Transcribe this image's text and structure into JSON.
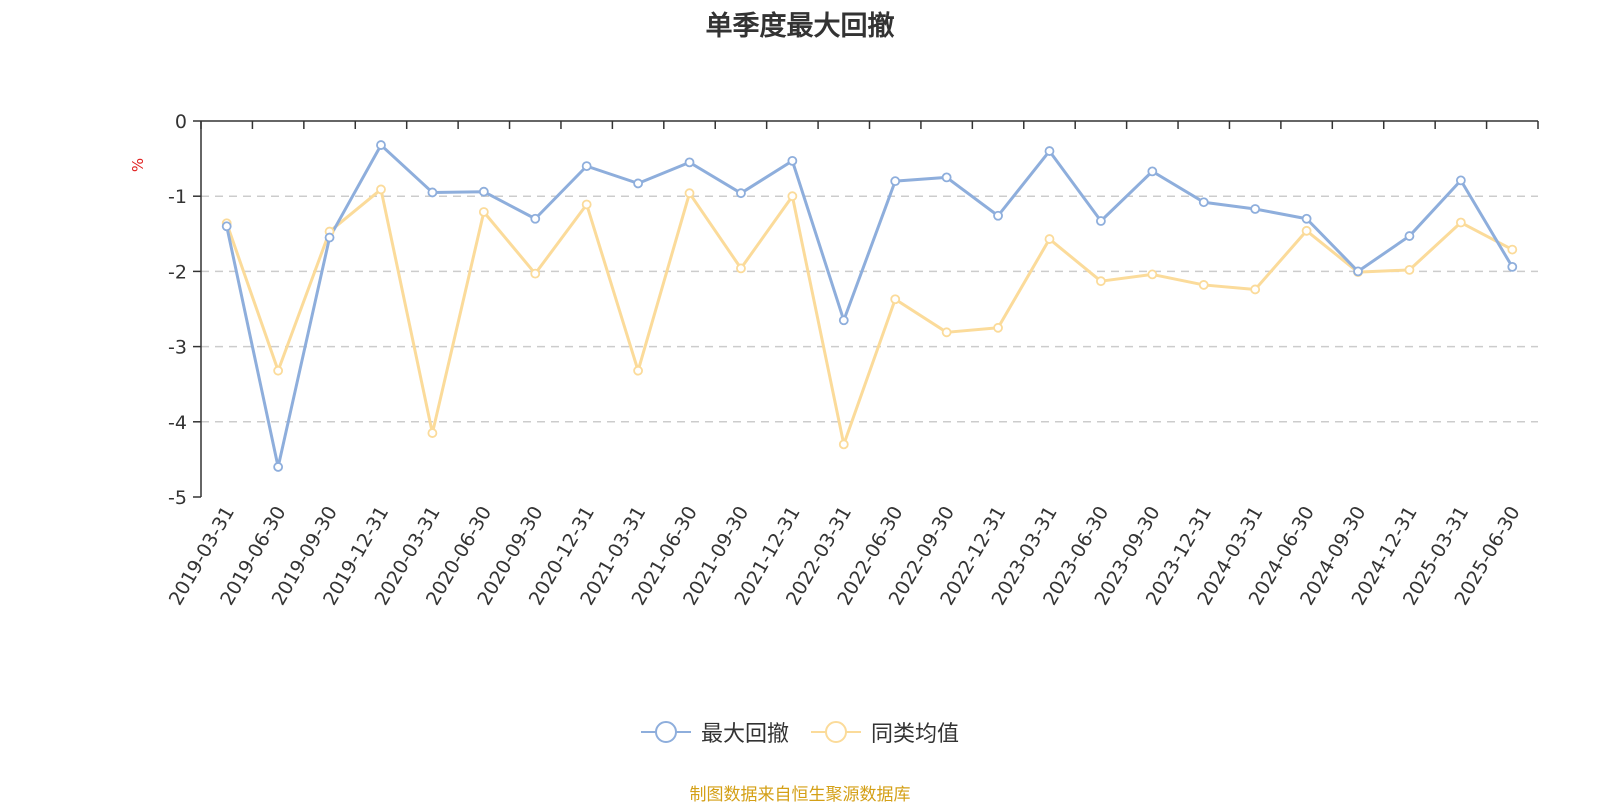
{
  "chart_data": {
    "type": "line",
    "title": "单季度最大回撤",
    "ylabel": "%",
    "ylim": [
      -5,
      0
    ],
    "yticks": [
      0,
      -1,
      -2,
      -3,
      -4,
      -5
    ],
    "grid": true,
    "legend_position": "bottom",
    "categories": [
      "2019-03-31",
      "2019-06-30",
      "2019-09-30",
      "2019-12-31",
      "2020-03-31",
      "2020-06-30",
      "2020-09-30",
      "2020-12-31",
      "2021-03-31",
      "2021-06-30",
      "2021-09-30",
      "2021-12-31",
      "2022-03-31",
      "2022-06-30",
      "2022-09-30",
      "2022-12-31",
      "2023-03-31",
      "2023-06-30",
      "2023-09-30",
      "2023-12-31",
      "2024-03-31",
      "2024-06-30",
      "2024-09-30",
      "2024-12-31",
      "2025-03-31",
      "2025-06-30"
    ],
    "series": [
      {
        "name": "最大回撤",
        "color": "#8eaedc",
        "values": [
          -1.4,
          -4.6,
          -1.55,
          -0.32,
          -0.95,
          -0.94,
          -1.3,
          -0.6,
          -0.83,
          -0.55,
          -0.96,
          -0.53,
          -2.65,
          -0.8,
          -0.75,
          -1.26,
          -0.4,
          -1.33,
          -0.67,
          -1.08,
          -1.17,
          -1.3,
          -2.0,
          -1.53,
          -0.79,
          -1.94
        ]
      },
      {
        "name": "同类均值",
        "color": "#fbdb9a",
        "values": [
          -1.36,
          -3.32,
          -1.47,
          -0.91,
          -4.15,
          -1.21,
          -2.03,
          -1.11,
          -3.32,
          -0.96,
          -1.96,
          -1.0,
          -4.3,
          -2.37,
          -2.81,
          -2.75,
          -1.57,
          -2.13,
          -2.04,
          -2.18,
          -2.24,
          -1.46,
          -2.01,
          -1.98,
          -1.35,
          -1.71
        ]
      }
    ]
  },
  "source_text": "制图数据来自恒生聚源数据库"
}
